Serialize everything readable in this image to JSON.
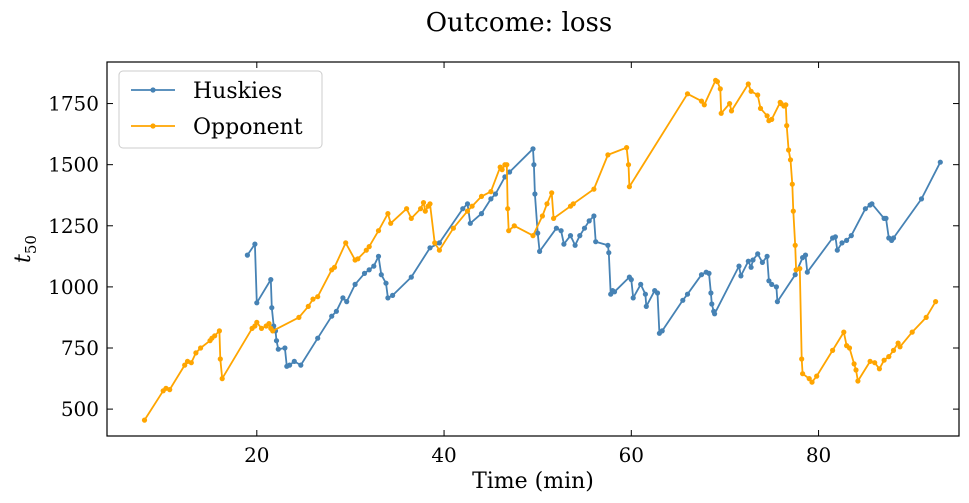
{
  "chart_data": {
    "type": "line",
    "title": "Outcome: loss",
    "xlabel": "Time (min)",
    "ylabel": "t",
    "ylabel_sub": "50",
    "xlim": [
      4,
      95
    ],
    "ylim": [
      390,
      1920
    ],
    "xticks": [
      20,
      40,
      60,
      80
    ],
    "yticks": [
      500,
      750,
      1000,
      1250,
      1500,
      1750
    ],
    "legend_position": "top-left",
    "grid": false,
    "series": [
      {
        "name": "Huskies",
        "color": "#4682b4",
        "points": [
          [
            19.0,
            1130
          ],
          [
            19.8,
            1175
          ],
          [
            20.0,
            935
          ],
          [
            21.5,
            1030
          ],
          [
            21.6,
            915
          ],
          [
            21.8,
            840
          ],
          [
            22.0,
            820
          ],
          [
            22.1,
            780
          ],
          [
            22.3,
            745
          ],
          [
            23.0,
            750
          ],
          [
            23.2,
            675
          ],
          [
            23.5,
            680
          ],
          [
            24.0,
            695
          ],
          [
            24.7,
            680
          ],
          [
            26.5,
            790
          ],
          [
            28.0,
            880
          ],
          [
            28.5,
            900
          ],
          [
            29.2,
            955
          ],
          [
            29.6,
            940
          ],
          [
            30.5,
            1010
          ],
          [
            31.5,
            1055
          ],
          [
            32.0,
            1070
          ],
          [
            32.5,
            1085
          ],
          [
            33.0,
            1125
          ],
          [
            33.3,
            1050
          ],
          [
            33.8,
            1015
          ],
          [
            34.0,
            955
          ],
          [
            34.5,
            965
          ],
          [
            36.5,
            1040
          ],
          [
            38.5,
            1160
          ],
          [
            39.5,
            1180
          ],
          [
            42.0,
            1320
          ],
          [
            42.5,
            1340
          ],
          [
            42.8,
            1260
          ],
          [
            44.0,
            1300
          ],
          [
            45.0,
            1360
          ],
          [
            45.5,
            1380
          ],
          [
            46.5,
            1450
          ],
          [
            47.0,
            1470
          ],
          [
            49.5,
            1565
          ],
          [
            49.6,
            1500
          ],
          [
            49.7,
            1380
          ],
          [
            50.0,
            1220
          ],
          [
            50.2,
            1145
          ],
          [
            52.0,
            1240
          ],
          [
            52.5,
            1230
          ],
          [
            52.8,
            1175
          ],
          [
            53.5,
            1210
          ],
          [
            54.0,
            1170
          ],
          [
            54.5,
            1210
          ],
          [
            55.0,
            1240
          ],
          [
            55.5,
            1270
          ],
          [
            56.0,
            1290
          ],
          [
            56.2,
            1185
          ],
          [
            57.5,
            1170
          ],
          [
            57.6,
            1140
          ],
          [
            57.8,
            970
          ],
          [
            58.0,
            985
          ],
          [
            58.2,
            980
          ],
          [
            59.8,
            1040
          ],
          [
            60.0,
            1030
          ],
          [
            60.2,
            955
          ],
          [
            61.0,
            1010
          ],
          [
            61.5,
            970
          ],
          [
            61.6,
            920
          ],
          [
            62.5,
            985
          ],
          [
            62.8,
            975
          ],
          [
            63.0,
            810
          ],
          [
            63.3,
            820
          ],
          [
            65.5,
            945
          ],
          [
            66.0,
            970
          ],
          [
            67.5,
            1050
          ],
          [
            68.0,
            1060
          ],
          [
            68.3,
            1055
          ],
          [
            68.5,
            975
          ],
          [
            68.6,
            930
          ],
          [
            68.8,
            900
          ],
          [
            68.9,
            890
          ],
          [
            71.5,
            1085
          ],
          [
            71.7,
            1045
          ],
          [
            72.5,
            1105
          ],
          [
            72.8,
            1080
          ],
          [
            73.0,
            1110
          ],
          [
            73.5,
            1135
          ],
          [
            74.0,
            1100
          ],
          [
            74.5,
            1125
          ],
          [
            74.7,
            1025
          ],
          [
            75.0,
            1010
          ],
          [
            75.5,
            1000
          ],
          [
            75.6,
            940
          ],
          [
            77.5,
            1050
          ],
          [
            78.3,
            1120
          ],
          [
            78.6,
            1130
          ],
          [
            78.8,
            1060
          ],
          [
            81.5,
            1200
          ],
          [
            81.8,
            1205
          ],
          [
            82.0,
            1150
          ],
          [
            82.5,
            1180
          ],
          [
            83.0,
            1190
          ],
          [
            83.5,
            1210
          ],
          [
            85.0,
            1320
          ],
          [
            85.5,
            1335
          ],
          [
            85.7,
            1340
          ],
          [
            87.0,
            1280
          ],
          [
            87.2,
            1280
          ],
          [
            87.5,
            1200
          ],
          [
            87.8,
            1190
          ],
          [
            88.0,
            1200
          ],
          [
            91.0,
            1360
          ],
          [
            93.0,
            1510
          ]
        ]
      },
      {
        "name": "Opponent",
        "color": "#ffa500",
        "points": [
          [
            8.0,
            455
          ],
          [
            10.0,
            575
          ],
          [
            10.3,
            585
          ],
          [
            10.7,
            580
          ],
          [
            12.3,
            680
          ],
          [
            12.6,
            695
          ],
          [
            13.0,
            690
          ],
          [
            13.5,
            730
          ],
          [
            14.0,
            750
          ],
          [
            15.0,
            780
          ],
          [
            15.2,
            790
          ],
          [
            15.5,
            800
          ],
          [
            16.0,
            820
          ],
          [
            16.1,
            705
          ],
          [
            16.3,
            625
          ],
          [
            19.5,
            830
          ],
          [
            19.8,
            840
          ],
          [
            20.0,
            855
          ],
          [
            20.5,
            830
          ],
          [
            21.0,
            840
          ],
          [
            21.3,
            850
          ],
          [
            21.5,
            830
          ],
          [
            21.7,
            820
          ],
          [
            24.5,
            875
          ],
          [
            25.5,
            920
          ],
          [
            26.0,
            950
          ],
          [
            26.5,
            960
          ],
          [
            28.0,
            1070
          ],
          [
            28.3,
            1080
          ],
          [
            29.5,
            1180
          ],
          [
            30.5,
            1110
          ],
          [
            30.8,
            1115
          ],
          [
            31.7,
            1150
          ],
          [
            32.0,
            1165
          ],
          [
            33.0,
            1230
          ],
          [
            34.0,
            1300
          ],
          [
            34.3,
            1260
          ],
          [
            36.0,
            1320
          ],
          [
            36.5,
            1280
          ],
          [
            37.5,
            1320
          ],
          [
            37.8,
            1345
          ],
          [
            38.0,
            1310
          ],
          [
            38.3,
            1330
          ],
          [
            38.5,
            1340
          ],
          [
            39.0,
            1180
          ],
          [
            39.5,
            1150
          ],
          [
            41.0,
            1240
          ],
          [
            42.5,
            1310
          ],
          [
            43.0,
            1330
          ],
          [
            44.0,
            1370
          ],
          [
            45.0,
            1390
          ],
          [
            46.0,
            1490
          ],
          [
            46.2,
            1480
          ],
          [
            46.5,
            1500
          ],
          [
            46.7,
            1500
          ],
          [
            46.8,
            1320
          ],
          [
            46.9,
            1230
          ],
          [
            47.5,
            1250
          ],
          [
            49.5,
            1210
          ],
          [
            50.5,
            1290
          ],
          [
            51.0,
            1340
          ],
          [
            51.5,
            1385
          ],
          [
            51.7,
            1280
          ],
          [
            53.5,
            1330
          ],
          [
            53.8,
            1340
          ],
          [
            56.0,
            1400
          ],
          [
            57.5,
            1540
          ],
          [
            59.5,
            1570
          ],
          [
            59.7,
            1500
          ],
          [
            59.8,
            1410
          ],
          [
            66.0,
            1790
          ],
          [
            67.5,
            1760
          ],
          [
            67.8,
            1745
          ],
          [
            69.0,
            1845
          ],
          [
            69.2,
            1840
          ],
          [
            69.5,
            1810
          ],
          [
            69.6,
            1710
          ],
          [
            70.5,
            1750
          ],
          [
            70.7,
            1720
          ],
          [
            72.5,
            1830
          ],
          [
            72.8,
            1800
          ],
          [
            73.5,
            1785
          ],
          [
            73.8,
            1730
          ],
          [
            74.5,
            1700
          ],
          [
            74.7,
            1680
          ],
          [
            75.0,
            1685
          ],
          [
            75.9,
            1755
          ],
          [
            76.0,
            1750
          ],
          [
            76.3,
            1740
          ],
          [
            76.5,
            1745
          ],
          [
            76.6,
            1660
          ],
          [
            76.8,
            1560
          ],
          [
            77.0,
            1520
          ],
          [
            77.2,
            1420
          ],
          [
            77.3,
            1310
          ],
          [
            77.5,
            1170
          ],
          [
            77.6,
            1070
          ],
          [
            78.0,
            1075
          ],
          [
            78.2,
            705
          ],
          [
            78.3,
            645
          ],
          [
            79.0,
            625
          ],
          [
            79.3,
            610
          ],
          [
            79.8,
            635
          ],
          [
            81.5,
            740
          ],
          [
            82.7,
            815
          ],
          [
            83.0,
            760
          ],
          [
            83.3,
            750
          ],
          [
            83.8,
            685
          ],
          [
            84.0,
            660
          ],
          [
            84.2,
            615
          ],
          [
            85.5,
            695
          ],
          [
            86.0,
            690
          ],
          [
            86.5,
            665
          ],
          [
            87.0,
            700
          ],
          [
            87.5,
            715
          ],
          [
            88.0,
            740
          ],
          [
            88.5,
            770
          ],
          [
            88.7,
            755
          ],
          [
            90.0,
            815
          ],
          [
            91.5,
            875
          ],
          [
            92.5,
            940
          ]
        ]
      }
    ]
  }
}
